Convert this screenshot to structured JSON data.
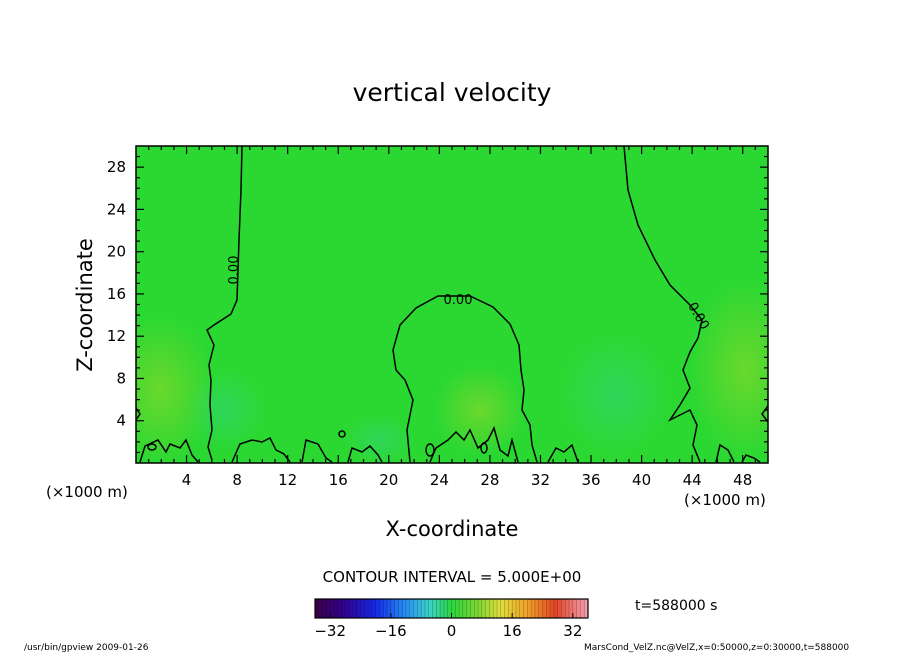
{
  "chart_data": {
    "type": "heatmap",
    "title": "vertical velocity",
    "xlabel": "X-coordinate",
    "ylabel": "Z-coordinate",
    "x_unit_left": "(×1000 m)",
    "x_unit_right": "(×1000 m)",
    "xlim": [
      0,
      50
    ],
    "ylim": [
      0,
      30
    ],
    "x_ticks": [
      4,
      8,
      12,
      16,
      20,
      24,
      28,
      32,
      36,
      40,
      44,
      48
    ],
    "y_ticks": [
      4,
      8,
      12,
      16,
      20,
      24,
      28
    ],
    "contour_labels": [
      "0.00",
      "0.00",
      "0.00"
    ],
    "contour_interval_text": "CONTOUR INTERVAL = 5.000E+00",
    "colorbar": {
      "min": -36,
      "max": 36,
      "ticks": [
        -32,
        -16,
        0,
        16,
        32
      ],
      "tick_labels": [
        "−32",
        "−16",
        "0",
        "16",
        "32"
      ]
    },
    "time_text": "t=588000 s",
    "footer_left": "/usr/bin/gpview   2009-01-26",
    "footer_right": "MarsCond_VelZ.nc@VelZ,x=0:50000,z=0:30000,t=588000",
    "colors": {
      "field": "#2bd832",
      "field_low": "#3ccf4a",
      "field_high": "#7ed82a"
    }
  }
}
